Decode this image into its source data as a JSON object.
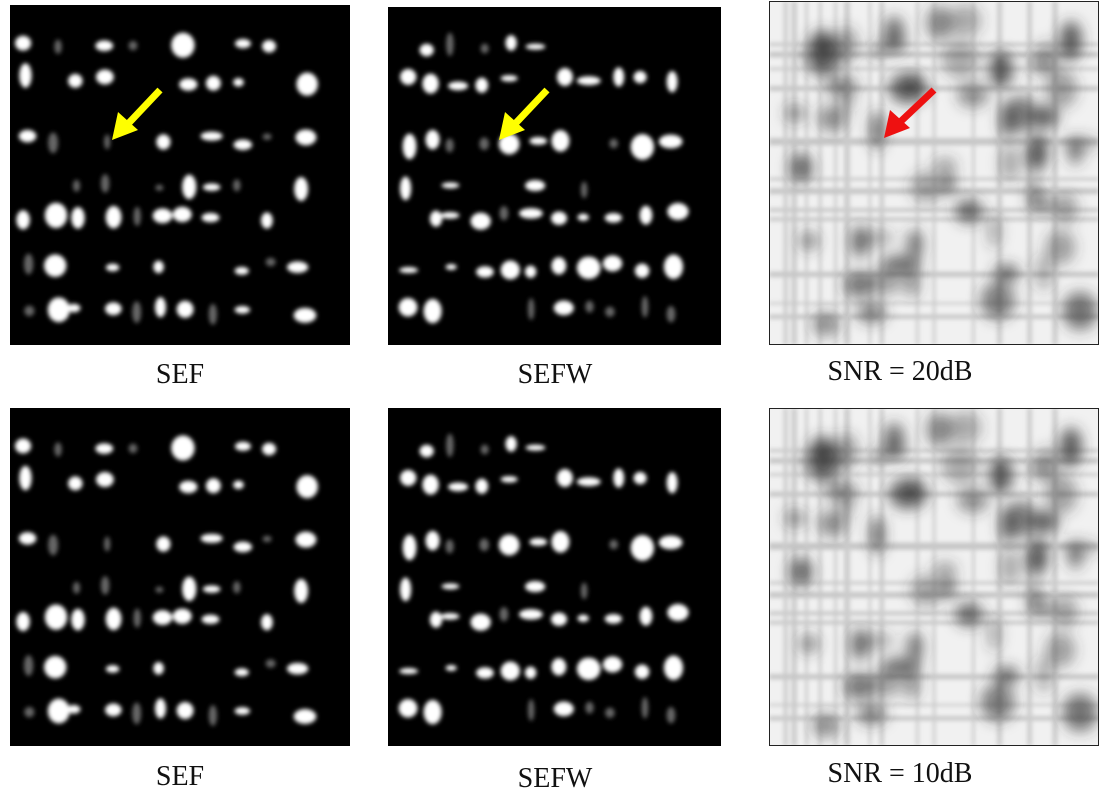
{
  "figure": {
    "panels": [
      {
        "caption": "SEF"
      },
      {
        "caption": "SEFW"
      },
      {
        "caption": "SNR = 20dB"
      },
      {
        "caption": "SEF"
      },
      {
        "caption": "SEFW"
      },
      {
        "caption": "SNR = 10dB"
      }
    ]
  }
}
